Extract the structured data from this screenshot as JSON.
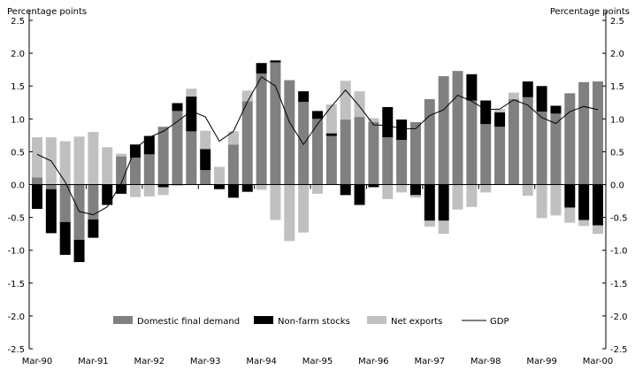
{
  "chart_data": {
    "type": "bar",
    "stacked": true,
    "ylabel_left": "Percentage points",
    "ylabel_right": "Percentage points",
    "ylim": [
      -2.5,
      2.5
    ],
    "yticks": [
      "2.5",
      "2.0",
      "1.5",
      "1.0",
      "0.5",
      "0.0",
      "-0.5",
      "-1.0",
      "-1.5",
      "-2.0",
      "-2.5"
    ],
    "ytick_values": [
      2.5,
      2.0,
      1.5,
      1.0,
      0.5,
      0.0,
      -0.5,
      -1.0,
      -1.5,
      -2.0,
      -2.5
    ],
    "xtick_labels": [
      "Mar-90",
      "Mar-91",
      "Mar-92",
      "Mar-93",
      "Mar-94",
      "Mar-95",
      "Mar-96",
      "Mar-97",
      "Mar-98",
      "Mar-99",
      "Mar-00"
    ],
    "categories": [
      "Mar-90",
      "Jun-90",
      "Sep-90",
      "Dec-90",
      "Mar-91",
      "Jun-91",
      "Sep-91",
      "Dec-91",
      "Mar-92",
      "Jun-92",
      "Sep-92",
      "Dec-92",
      "Mar-93",
      "Jun-93",
      "Sep-93",
      "Dec-93",
      "Mar-94",
      "Jun-94",
      "Sep-94",
      "Dec-94",
      "Mar-95",
      "Jun-95",
      "Sep-95",
      "Dec-95",
      "Mar-96",
      "Jun-96",
      "Sep-96",
      "Dec-96",
      "Mar-97",
      "Jun-97",
      "Sep-97",
      "Dec-97",
      "Mar-98",
      "Jun-98",
      "Sep-98",
      "Dec-98",
      "Mar-99",
      "Jun-99",
      "Sep-99",
      "Dec-99",
      "Mar-00"
    ],
    "grid": false,
    "legend_position": "bottom",
    "series": [
      {
        "name": "Domestic final demand",
        "type": "bar",
        "color": "#808080",
        "values": [
          0.11,
          -0.07,
          -0.57,
          -0.84,
          -0.53,
          0.0,
          0.43,
          0.41,
          0.46,
          0.88,
          1.12,
          0.81,
          0.22,
          0.0,
          0.61,
          1.27,
          1.69,
          1.86,
          1.59,
          1.26,
          1.0,
          0.74,
          0.99,
          1.03,
          0.95,
          0.72,
          0.68,
          0.95,
          1.3,
          1.65,
          1.73,
          1.28,
          0.92,
          0.88,
          1.3,
          1.33,
          1.11,
          1.08,
          1.39,
          1.56,
          1.57
        ]
      },
      {
        "name": "Non-farm stocks",
        "type": "bar",
        "color": "#000000",
        "values": [
          -0.37,
          -0.67,
          -0.5,
          -0.34,
          -0.28,
          -0.31,
          -0.14,
          0.2,
          0.28,
          -0.04,
          0.12,
          0.53,
          0.32,
          -0.07,
          -0.2,
          -0.11,
          0.16,
          0.03,
          0.0,
          0.16,
          0.12,
          0.04,
          -0.16,
          -0.31,
          -0.04,
          0.46,
          0.31,
          -0.16,
          -0.55,
          -0.55,
          0.0,
          0.4,
          0.36,
          0.22,
          0.0,
          0.24,
          0.39,
          0.12,
          -0.35,
          -0.54,
          -0.62
        ]
      },
      {
        "name": "Net exports",
        "type": "bar",
        "color": "#c0c0c0",
        "values": [
          0.61,
          0.72,
          0.66,
          0.73,
          0.8,
          0.57,
          0.04,
          -0.19,
          -0.18,
          -0.12,
          -0.02,
          0.12,
          0.28,
          0.27,
          0.2,
          0.16,
          -0.08,
          -0.54,
          -0.86,
          -0.73,
          -0.14,
          0.44,
          0.59,
          0.39,
          0.06,
          -0.22,
          -0.12,
          -0.04,
          -0.09,
          -0.2,
          -0.38,
          -0.34,
          -0.12,
          0.05,
          0.1,
          -0.17,
          -0.51,
          -0.47,
          -0.23,
          -0.09,
          -0.13
        ]
      },
      {
        "name": "GDP",
        "type": "line",
        "color": "#000000",
        "values": [
          0.46,
          0.36,
          0.04,
          -0.41,
          -0.46,
          -0.34,
          0.02,
          0.55,
          0.72,
          0.81,
          0.96,
          1.12,
          1.03,
          0.66,
          0.81,
          1.26,
          1.64,
          1.5,
          0.95,
          0.61,
          0.92,
          1.19,
          1.44,
          1.19,
          0.91,
          0.9,
          0.85,
          0.85,
          1.05,
          1.14,
          1.36,
          1.27,
          1.14,
          1.15,
          1.29,
          1.21,
          1.02,
          0.93,
          1.11,
          1.19,
          1.14
        ]
      }
    ]
  }
}
